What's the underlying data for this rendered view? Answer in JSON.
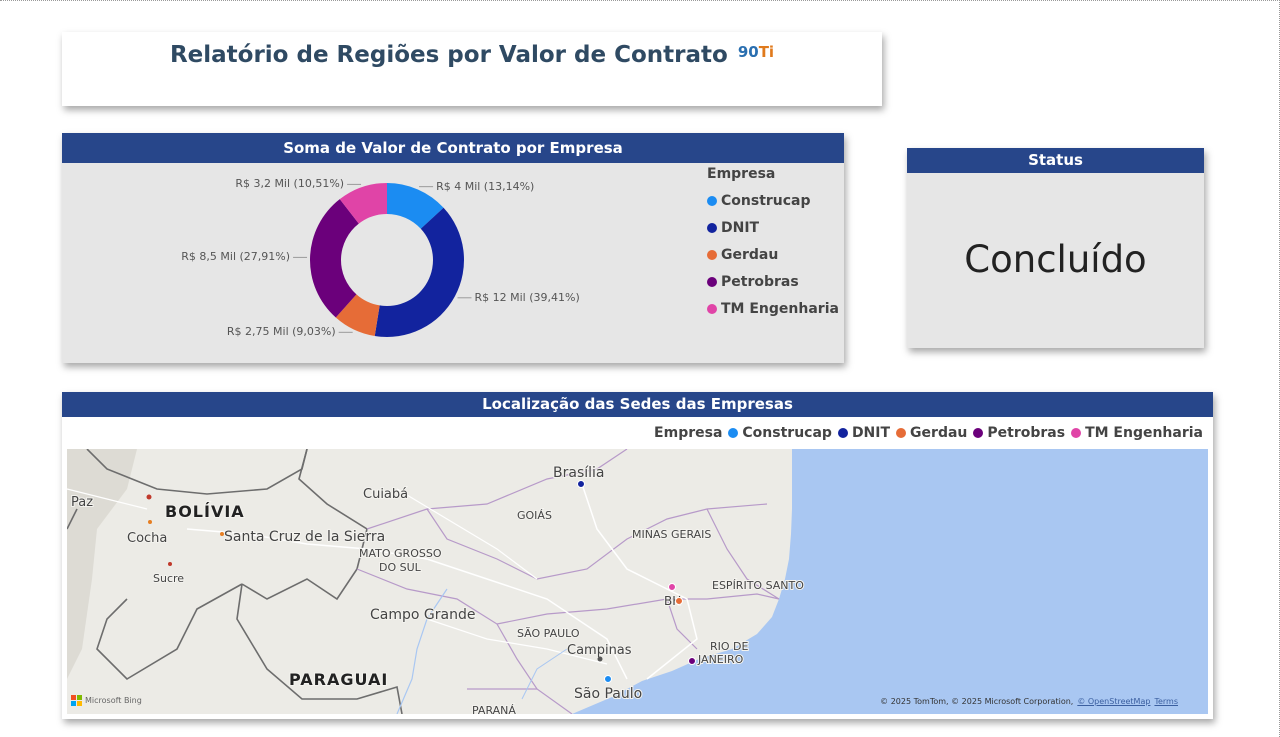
{
  "report": {
    "title": "Relatório de Regiões por Valor de Contrato",
    "logo_part1": "90",
    "logo_part2": "Ti"
  },
  "donut": {
    "header": "Soma de Valor de Contrato por Empresa",
    "legend_title": "Empresa"
  },
  "chart_data": {
    "type": "pie",
    "donut": true,
    "title": "Soma de Valor de Contrato por Empresa",
    "legend_title": "Empresa",
    "legend_position": "right",
    "categories": [
      "Construcap",
      "DNIT",
      "Gerdau",
      "Petrobras",
      "TM Engenharia"
    ],
    "values": [
      4,
      12,
      2.75,
      8.5,
      3.2
    ],
    "percents": [
      13.14,
      39.41,
      9.03,
      27.91,
      10.51
    ],
    "labels": [
      "R$ 4 Mil (13,14%)",
      "R$ 12 Mil (39,41%)",
      "R$ 2,75 Mil (9,03%)",
      "R$ 8,5 Mil (27,91%)",
      "R$ 3,2 Mil (10,51%)"
    ],
    "colors": [
      "#1b8cf2",
      "#12239e",
      "#e66c37",
      "#6b007b",
      "#e044a7"
    ]
  },
  "status": {
    "header": "Status",
    "value": "Concluído"
  },
  "map": {
    "header": "Localização das Sedes das Empresas",
    "legend_title": "Empresa",
    "legend_items": [
      "Construcap",
      "DNIT",
      "Gerdau",
      "Petrobras",
      "TM Engenharia"
    ],
    "places": [
      {
        "name": "Brasília",
        "bold": false
      },
      {
        "name": "Cuiabá",
        "bold": false
      },
      {
        "name": "GOIÁS",
        "bold": false
      },
      {
        "name": "BOLÍVIA",
        "bold": true
      },
      {
        "name": "Santa Cruz de la Sierra",
        "bold": false
      },
      {
        "name": "Cocha",
        "bold": false
      },
      {
        "name": "Sucre",
        "bold": false
      },
      {
        "name": "MATO GROSSO",
        "bold": false
      },
      {
        "name": "DO SUL",
        "bold": false
      },
      {
        "name": "MINAS GERAIS",
        "bold": false
      },
      {
        "name": "ESPÍRITO SANTO",
        "bold": false
      },
      {
        "name": "BH",
        "bold": false
      },
      {
        "name": "Campo Grande",
        "bold": false
      },
      {
        "name": "SÃO PAULO",
        "bold": false
      },
      {
        "name": "Campinas",
        "bold": false
      },
      {
        "name": "RIO DE",
        "bold": false
      },
      {
        "name": "JANEIRO",
        "bold": false
      },
      {
        "name": "PARAGUAI",
        "bold": true
      },
      {
        "name": "São Paulo",
        "bold": false
      },
      {
        "name": "PARANÁ",
        "bold": false
      },
      {
        "name": "Paz",
        "bold": false
      }
    ],
    "attribution": "© 2025 TomTom, © 2025 Microsoft Corporation,",
    "attribution_link": "© OpenStreetMap",
    "terms": "Terms",
    "bing": "Microsoft Bing"
  }
}
